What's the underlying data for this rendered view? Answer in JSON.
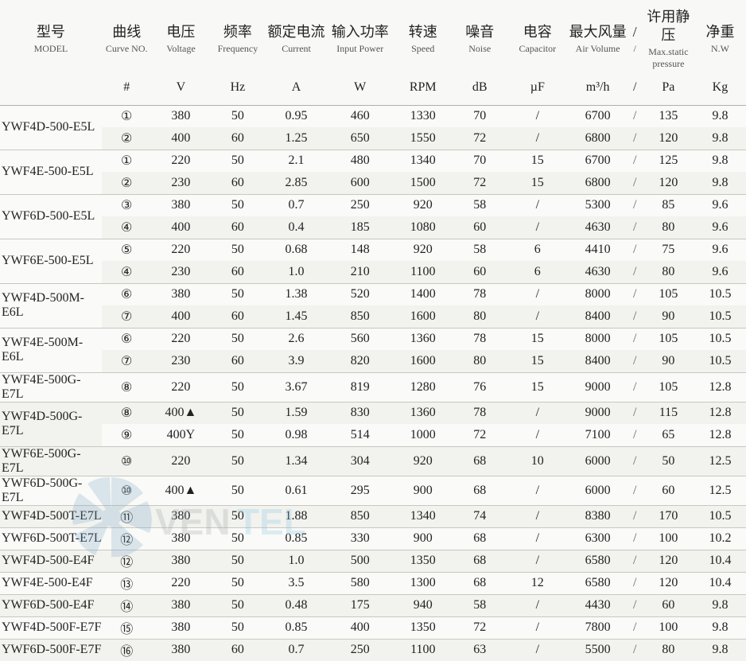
{
  "headers": [
    {
      "cn": "型号",
      "en": "MODEL"
    },
    {
      "cn": "曲线",
      "en": "Curve NO."
    },
    {
      "cn": "电压",
      "en": "Voltage"
    },
    {
      "cn": "频率",
      "en": "Frequency"
    },
    {
      "cn": "额定电流",
      "en": "Current"
    },
    {
      "cn": "输入功率",
      "en": "Input Power"
    },
    {
      "cn": "转速",
      "en": "Speed"
    },
    {
      "cn": "噪音",
      "en": "Noise"
    },
    {
      "cn": "电容",
      "en": "Capacitor"
    },
    {
      "cn": "最大风量",
      "en": "Air Volume"
    },
    {
      "cn": "/",
      "en": "/"
    },
    {
      "cn": "许用静压",
      "en": "Max.static pressure"
    },
    {
      "cn": "净重",
      "en": "N.W"
    }
  ],
  "units": [
    "",
    "#",
    "V",
    "Hz",
    "A",
    "W",
    "RPM",
    "dB",
    "µF",
    "m³/h",
    "/",
    "Pa",
    "Kg"
  ],
  "groups": [
    {
      "model": "YWF4D-500-E5L",
      "rows": [
        {
          "c": "①",
          "v": "380",
          "f": "50",
          "a": "0.95",
          "w": "460",
          "rpm": "1330",
          "db": "70",
          "uf": "/",
          "av": "6700",
          "pa": "135",
          "kg": "9.8"
        },
        {
          "c": "②",
          "v": "400",
          "f": "60",
          "a": "1.25",
          "w": "650",
          "rpm": "1550",
          "db": "72",
          "uf": "/",
          "av": "6800",
          "pa": "120",
          "kg": "9.8"
        }
      ]
    },
    {
      "model": "YWF4E-500-E5L",
      "rows": [
        {
          "c": "①",
          "v": "220",
          "f": "50",
          "a": "2.1",
          "w": "480",
          "rpm": "1340",
          "db": "70",
          "uf": "15",
          "av": "6700",
          "pa": "125",
          "kg": "9.8"
        },
        {
          "c": "②",
          "v": "230",
          "f": "60",
          "a": "2.85",
          "w": "600",
          "rpm": "1500",
          "db": "72",
          "uf": "15",
          "av": "6800",
          "pa": "120",
          "kg": "9.8"
        }
      ]
    },
    {
      "model": "YWF6D-500-E5L",
      "rows": [
        {
          "c": "③",
          "v": "380",
          "f": "50",
          "a": "0.7",
          "w": "250",
          "rpm": "920",
          "db": "58",
          "uf": "/",
          "av": "5300",
          "pa": "85",
          "kg": "9.6"
        },
        {
          "c": "④",
          "v": "400",
          "f": "60",
          "a": "0.4",
          "w": "185",
          "rpm": "1080",
          "db": "60",
          "uf": "/",
          "av": "4630",
          "pa": "80",
          "kg": "9.6"
        }
      ]
    },
    {
      "model": "YWF6E-500-E5L",
      "rows": [
        {
          "c": "⑤",
          "v": "220",
          "f": "50",
          "a": "0.68",
          "w": "148",
          "rpm": "920",
          "db": "58",
          "uf": "6",
          "av": "4410",
          "pa": "75",
          "kg": "9.6"
        },
        {
          "c": "④",
          "v": "230",
          "f": "60",
          "a": "1.0",
          "w": "210",
          "rpm": "1100",
          "db": "60",
          "uf": "6",
          "av": "4630",
          "pa": "80",
          "kg": "9.6"
        }
      ]
    },
    {
      "model": "YWF4D-500M-E6L",
      "rows": [
        {
          "c": "⑥",
          "v": "380",
          "f": "50",
          "a": "1.38",
          "w": "520",
          "rpm": "1400",
          "db": "78",
          "uf": "/",
          "av": "8000",
          "pa": "105",
          "kg": "10.5"
        },
        {
          "c": "⑦",
          "v": "400",
          "f": "60",
          "a": "1.45",
          "w": "850",
          "rpm": "1600",
          "db": "80",
          "uf": "/",
          "av": "8400",
          "pa": "90",
          "kg": "10.5"
        }
      ]
    },
    {
      "model": "YWF4E-500M-E6L",
      "rows": [
        {
          "c": "⑥",
          "v": "220",
          "f": "50",
          "a": "2.6",
          "w": "560",
          "rpm": "1360",
          "db": "78",
          "uf": "15",
          "av": "8000",
          "pa": "105",
          "kg": "10.5"
        },
        {
          "c": "⑦",
          "v": "230",
          "f": "60",
          "a": "3.9",
          "w": "820",
          "rpm": "1600",
          "db": "80",
          "uf": "15",
          "av": "8400",
          "pa": "90",
          "kg": "10.5"
        }
      ]
    },
    {
      "model": "YWF4E-500G-E7L",
      "rows": [
        {
          "c": "⑧",
          "v": "220",
          "f": "50",
          "a": "3.67",
          "w": "819",
          "rpm": "1280",
          "db": "76",
          "uf": "15",
          "av": "9000",
          "pa": "105",
          "kg": "12.8"
        }
      ]
    },
    {
      "model": "YWF4D-500G-E7L",
      "rows": [
        {
          "c": "⑧",
          "v": "400▲",
          "f": "50",
          "a": "1.59",
          "w": "830",
          "rpm": "1360",
          "db": "78",
          "uf": "/",
          "av": "9000",
          "pa": "115",
          "kg": "12.8"
        },
        {
          "c": "⑨",
          "v": "400Y",
          "f": "50",
          "a": "0.98",
          "w": "514",
          "rpm": "1000",
          "db": "72",
          "uf": "/",
          "av": "7100",
          "pa": "65",
          "kg": "12.8"
        }
      ]
    },
    {
      "model": "YWF6E-500G-E7L",
      "rows": [
        {
          "c": "⑩",
          "v": "220",
          "f": "50",
          "a": "1.34",
          "w": "304",
          "rpm": "920",
          "db": "68",
          "uf": "10",
          "av": "6000",
          "pa": "50",
          "kg": "12.5"
        }
      ]
    },
    {
      "model": "YWF6D-500G-E7L",
      "rows": [
        {
          "c": "⑩",
          "v": "400▲",
          "f": "50",
          "a": "0.61",
          "w": "295",
          "rpm": "900",
          "db": "68",
          "uf": "/",
          "av": "6000",
          "pa": "60",
          "kg": "12.5"
        }
      ]
    },
    {
      "model": "YWF4D-500T-E7L",
      "rows": [
        {
          "c": "⑪",
          "v": "380",
          "f": "50",
          "a": "1.88",
          "w": "850",
          "rpm": "1340",
          "db": "74",
          "uf": "/",
          "av": "8380",
          "pa": "170",
          "kg": "10.5"
        }
      ]
    },
    {
      "model": "YWF6D-500T-E7L",
      "rows": [
        {
          "c": "⑫",
          "v": "380",
          "f": "50",
          "a": "0.85",
          "w": "330",
          "rpm": "900",
          "db": "68",
          "uf": "/",
          "av": "6300",
          "pa": "100",
          "kg": "10.2"
        }
      ]
    },
    {
      "model": "YWF4D-500-E4F",
      "rows": [
        {
          "c": "⑫",
          "v": "380",
          "f": "50",
          "a": "1.0",
          "w": "500",
          "rpm": "1350",
          "db": "68",
          "uf": "/",
          "av": "6580",
          "pa": "120",
          "kg": "10.4"
        }
      ]
    },
    {
      "model": "YWF4E-500-E4F",
      "rows": [
        {
          "c": "⑬",
          "v": "220",
          "f": "50",
          "a": "3.5",
          "w": "580",
          "rpm": "1300",
          "db": "68",
          "uf": "12",
          "av": "6580",
          "pa": "120",
          "kg": "10.4"
        }
      ]
    },
    {
      "model": "YWF6D-500-E4F",
      "rows": [
        {
          "c": "⑭",
          "v": "380",
          "f": "50",
          "a": "0.48",
          "w": "175",
          "rpm": "940",
          "db": "58",
          "uf": "/",
          "av": "4430",
          "pa": "60",
          "kg": "9.8"
        }
      ]
    },
    {
      "model": "YWF4D-500F-E7F",
      "rows": [
        {
          "c": "⑮",
          "v": "380",
          "f": "50",
          "a": "0.85",
          "w": "400",
          "rpm": "1350",
          "db": "72",
          "uf": "/",
          "av": "7800",
          "pa": "100",
          "kg": "9.8"
        }
      ]
    },
    {
      "model": "YWF6D-500F-E7F",
      "rows": [
        {
          "c": "⑯",
          "v": "380",
          "f": "60",
          "a": "0.7",
          "w": "250",
          "rpm": "1100",
          "db": "63",
          "uf": "/",
          "av": "5500",
          "pa": "80",
          "kg": "9.8"
        }
      ]
    }
  ],
  "colors": {
    "bg": "#f8f8f6",
    "row_odd": "#fafaf8",
    "row_even": "#f2f2ee",
    "line": "#b0b0a8",
    "text": "#222"
  },
  "slash": "/",
  "watermark": {
    "text": "VENTEL",
    "icon_color": "#7aa8c8",
    "text_color1": "#9aa0a6",
    "text_color2": "#7fc5e6"
  }
}
